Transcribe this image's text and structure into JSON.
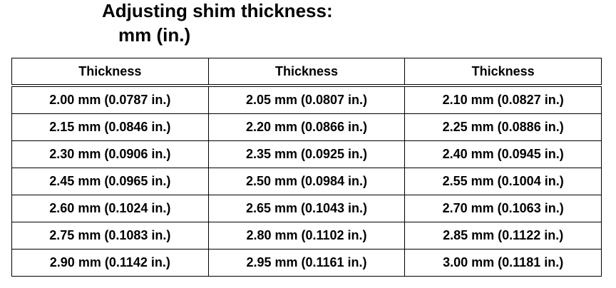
{
  "header": {
    "title_lines": [
      "Adjusting shim thickness:",
      "mm (in.)"
    ]
  },
  "table": {
    "columns": [
      "Thickness",
      "Thickness",
      "Thickness"
    ],
    "rows": [
      [
        "2.00 mm (0.0787 in.)",
        "2.05 mm (0.0807 in.)",
        "2.10 mm (0.0827 in.)"
      ],
      [
        "2.15 mm (0.0846 in.)",
        "2.20 mm (0.0866 in.)",
        "2.25 mm (0.0886 in.)"
      ],
      [
        "2.30 mm (0.0906 in.)",
        "2.35 mm (0.0925 in.)",
        "2.40 mm (0.0945 in.)"
      ],
      [
        "2.45 mm (0.0965 in.)",
        "2.50 mm (0.0984 in.)",
        "2.55 mm (0.1004 in.)"
      ],
      [
        "2.60 mm (0.1024 in.)",
        "2.65 mm (0.1043 in.)",
        "2.70 mm (0.1063 in.)"
      ],
      [
        "2.75 mm (0.1083 in.)",
        "2.80 mm (0.1102 in.)",
        "2.85 mm (0.1122 in.)"
      ],
      [
        "2.90 mm (0.1142 in.)",
        "2.95 mm (0.1161 in.)",
        "3.00 mm (0.1181 in.)"
      ]
    ]
  }
}
